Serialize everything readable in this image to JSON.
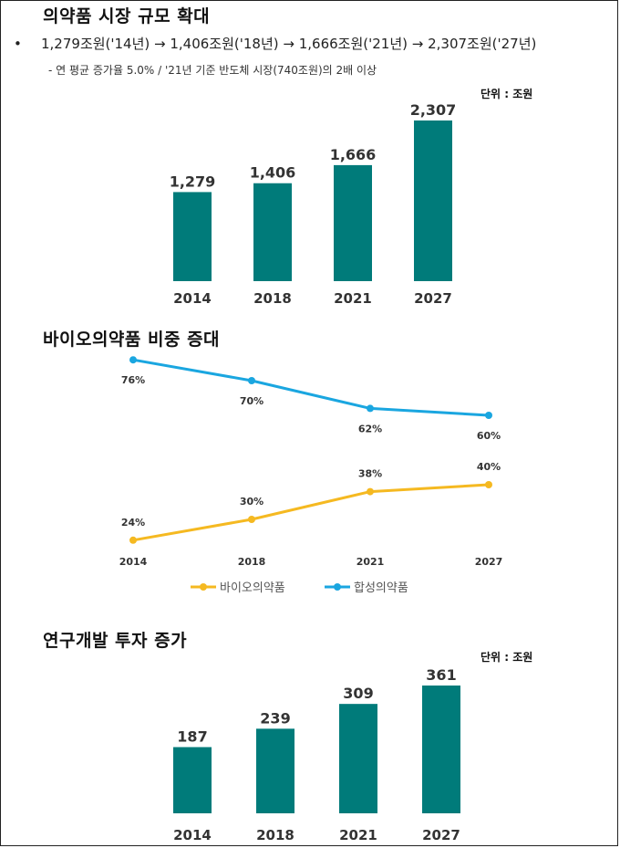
{
  "market": {
    "title": "의약품 시장 규모 확대",
    "bullet": "1,279조원('14년) → 1,406조원('18년) → 1,666조원('21년) → 2,307조원('27년)",
    "sub": "- 연 평균 증가율 5.0% / '21년 기준 반도체 시장(740조원)의 2배 이상",
    "unit": "단위 : 조원"
  },
  "bio": {
    "title": "바이오의약품 비중 증대"
  },
  "rnd": {
    "title": "연구개발 투자 증가",
    "unit": "단위 : 조원"
  },
  "colors": {
    "teal": "#007b7a",
    "gold": "#f5b921",
    "blue": "#1aa6e0"
  },
  "chart_data": [
    {
      "type": "bar",
      "title": "의약품 시장 규모 확대",
      "categories": [
        "2014",
        "2018",
        "2021",
        "2027"
      ],
      "values": [
        1279,
        1406,
        1666,
        2307
      ],
      "value_labels": [
        "1,279",
        "1,406",
        "1,666",
        "2,307"
      ],
      "ylim": [
        0,
        2307
      ],
      "unit": "단위 : 조원",
      "color": "#007b7a"
    },
    {
      "type": "line",
      "title": "바이오의약품 비중 증대",
      "categories": [
        "2014",
        "2018",
        "2021",
        "2027"
      ],
      "ylim": [
        0,
        100
      ],
      "series": [
        {
          "name": "바이오의약품",
          "values": [
            24,
            30,
            38,
            40
          ],
          "labels": [
            "24%",
            "30%",
            "38%",
            "40%"
          ],
          "color": "#f5b921"
        },
        {
          "name": "합성의약품",
          "values": [
            76,
            70,
            62,
            60
          ],
          "labels": [
            "76%",
            "70%",
            "62%",
            "60%"
          ],
          "color": "#1aa6e0"
        }
      ],
      "legend": "bottom"
    },
    {
      "type": "bar",
      "title": "연구개발 투자 증가",
      "categories": [
        "2014",
        "2018",
        "2021",
        "2027"
      ],
      "values": [
        187,
        239,
        309,
        361
      ],
      "value_labels": [
        "187",
        "239",
        "309",
        "361"
      ],
      "ylim": [
        0,
        361
      ],
      "unit": "단위 : 조원",
      "color": "#007b7a"
    }
  ]
}
